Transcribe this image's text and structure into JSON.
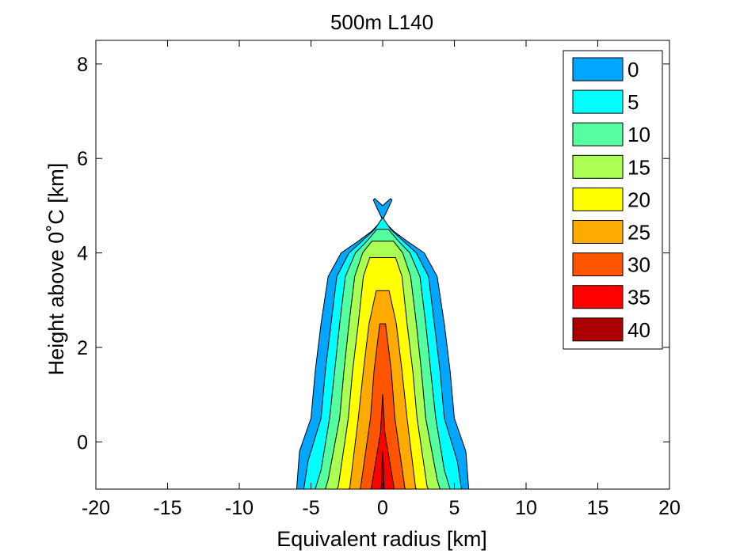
{
  "chart_data": {
    "type": "contour",
    "title": "500m L140",
    "xlabel": "Equivalent radius [km]",
    "ylabel": "Height above 0˚C [km]",
    "xlim": [
      -20,
      20
    ],
    "ylim": [
      -1,
      8.5
    ],
    "xticks": [
      -20,
      -15,
      -10,
      -5,
      0,
      5,
      10,
      15,
      20
    ],
    "yticks": [
      0,
      2,
      4,
      6,
      8
    ],
    "legend_position": "top-right",
    "levels": [
      {
        "value": 0,
        "label": "0",
        "color": "#00a6ff",
        "profile": [
          [
            -1,
            6.0
          ],
          [
            -0.2,
            5.8
          ],
          [
            0.5,
            5.0
          ],
          [
            1.5,
            4.7
          ],
          [
            2.5,
            4.3
          ],
          [
            3.5,
            3.8
          ],
          [
            4.0,
            2.9
          ],
          [
            4.25,
            1.7
          ],
          [
            4.45,
            0.8
          ],
          [
            4.7,
            0.0
          ],
          [
            4.95,
            -0.4
          ],
          [
            5.12,
            -0.65
          ],
          [
            5.15,
            -0.55
          ],
          [
            5.0,
            0.0
          ]
        ]
      },
      {
        "value": 5,
        "label": "5",
        "color": "#00ffff",
        "profile": [
          [
            -1,
            5.5
          ],
          [
            -0.4,
            5.2
          ],
          [
            0.5,
            4.3
          ],
          [
            1.5,
            4.0
          ],
          [
            2.5,
            3.6
          ],
          [
            3.5,
            3.2
          ],
          [
            4.0,
            2.35
          ],
          [
            4.25,
            1.45
          ],
          [
            4.5,
            0.55
          ],
          [
            4.75,
            0.0
          ]
        ]
      },
      {
        "value": 10,
        "label": "10",
        "color": "#55ff9f",
        "profile": [
          [
            -1,
            4.7
          ],
          [
            -0.6,
            4.3
          ],
          [
            0.5,
            3.7
          ],
          [
            1.5,
            3.35
          ],
          [
            2.5,
            3.0
          ],
          [
            3.5,
            2.6
          ],
          [
            4.0,
            1.9
          ],
          [
            4.25,
            1.1
          ],
          [
            4.5,
            0.4
          ]
        ]
      },
      {
        "value": 15,
        "label": "15",
        "color": "#aaff52",
        "profile": [
          [
            -1,
            4.0
          ],
          [
            -0.8,
            3.8
          ],
          [
            0.5,
            3.0
          ],
          [
            1.5,
            2.7
          ],
          [
            2.5,
            2.35
          ],
          [
            3.5,
            1.95
          ],
          [
            4.0,
            1.4
          ],
          [
            4.25,
            0.75
          ]
        ]
      },
      {
        "value": 20,
        "label": "20",
        "color": "#ffff00",
        "profile": [
          [
            -1,
            3.2
          ],
          [
            -0.95,
            3.1
          ],
          [
            0.5,
            2.4
          ],
          [
            1.5,
            2.1
          ],
          [
            2.5,
            1.7
          ],
          [
            3.5,
            1.35
          ],
          [
            3.9,
            0.9
          ]
        ]
      },
      {
        "value": 25,
        "label": "25",
        "color": "#ffaa00",
        "profile": [
          [
            -1,
            2.4
          ],
          [
            -0.98,
            2.3
          ],
          [
            0.5,
            1.7
          ],
          [
            1.5,
            1.35
          ],
          [
            2.5,
            0.95
          ],
          [
            3.2,
            0.45
          ]
        ]
      },
      {
        "value": 30,
        "label": "30",
        "color": "#ff5500",
        "profile": [
          [
            -1,
            1.6
          ],
          [
            -0.99,
            1.55
          ],
          [
            0.5,
            0.85
          ],
          [
            1.5,
            0.6
          ],
          [
            2.5,
            0.2
          ]
        ]
      },
      {
        "value": 35,
        "label": "35",
        "color": "#ff0000",
        "profile": [
          [
            -1,
            0.85
          ],
          [
            -0.99,
            0.8
          ],
          [
            0.2,
            0.15
          ],
          [
            1.0,
            0.0
          ]
        ]
      },
      {
        "value": 40,
        "label": "40",
        "color": "#aa0000",
        "profile": [
          [
            -1,
            0.1
          ],
          [
            -0.5,
            0.05
          ],
          [
            -0.2,
            0.0
          ]
        ]
      }
    ]
  }
}
